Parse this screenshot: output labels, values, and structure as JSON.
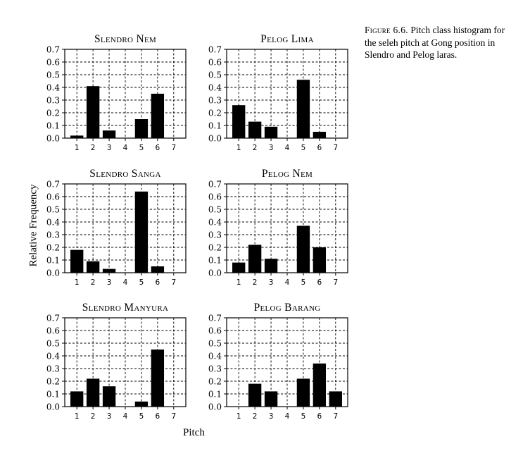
{
  "figure": {
    "caption_lead": "Figure 6.6.",
    "caption_text": "Pitch class histogram for the seleh pitch at Gong position in Slendro and Pelog laras.",
    "ylabel": "Relative Frequency",
    "xlabel": "Pitch"
  },
  "chart_data": [
    {
      "type": "bar",
      "title": "Slendro Nem",
      "categories": [
        "1",
        "2",
        "3",
        "4",
        "5",
        "6",
        "7"
      ],
      "values": [
        0.02,
        0.41,
        0.06,
        0.0,
        0.15,
        0.35,
        0.0
      ],
      "ylim": [
        0,
        0.7
      ],
      "yticks": [
        "0.0",
        "0.1",
        "0.2",
        "0.3",
        "0.4",
        "0.5",
        "0.6",
        "0.7"
      ],
      "grid": true
    },
    {
      "type": "bar",
      "title": "Pelog Lima",
      "categories": [
        "1",
        "2",
        "3",
        "4",
        "5",
        "6",
        "7"
      ],
      "values": [
        0.26,
        0.13,
        0.09,
        0.0,
        0.46,
        0.05,
        0.0
      ],
      "ylim": [
        0,
        0.7
      ],
      "yticks": [
        "0.0",
        "0.1",
        "0.2",
        "0.3",
        "0.4",
        "0.5",
        "0.6",
        "0.7"
      ],
      "grid": true
    },
    {
      "type": "bar",
      "title": "Slendro Sanga",
      "categories": [
        "1",
        "2",
        "3",
        "4",
        "5",
        "6",
        "7"
      ],
      "values": [
        0.18,
        0.09,
        0.03,
        0.0,
        0.64,
        0.05,
        0.0
      ],
      "ylim": [
        0,
        0.7
      ],
      "yticks": [
        "0.0",
        "0.1",
        "0.2",
        "0.3",
        "0.4",
        "0.5",
        "0.6",
        "0.7"
      ],
      "grid": true
    },
    {
      "type": "bar",
      "title": "Pelog Nem",
      "categories": [
        "1",
        "2",
        "3",
        "4",
        "5",
        "6",
        "7"
      ],
      "values": [
        0.08,
        0.22,
        0.11,
        0.0,
        0.37,
        0.2,
        0.0
      ],
      "ylim": [
        0,
        0.7
      ],
      "yticks": [
        "0.0",
        "0.1",
        "0.2",
        "0.3",
        "0.4",
        "0.5",
        "0.6",
        "0.7"
      ],
      "grid": true
    },
    {
      "type": "bar",
      "title": "Slendro Manyura",
      "categories": [
        "1",
        "2",
        "3",
        "4",
        "5",
        "6",
        "7"
      ],
      "values": [
        0.12,
        0.22,
        0.16,
        0.0,
        0.04,
        0.45,
        0.0
      ],
      "ylim": [
        0,
        0.7
      ],
      "yticks": [
        "0.0",
        "0.1",
        "0.2",
        "0.3",
        "0.4",
        "0.5",
        "0.6",
        "0.7"
      ],
      "grid": true
    },
    {
      "type": "bar",
      "title": "Pelog Barang",
      "categories": [
        "1",
        "2",
        "3",
        "4",
        "5",
        "6",
        "7"
      ],
      "values": [
        0.0,
        0.18,
        0.12,
        0.0,
        0.22,
        0.34,
        0.12
      ],
      "ylim": [
        0,
        0.7
      ],
      "yticks": [
        "0.0",
        "0.1",
        "0.2",
        "0.3",
        "0.4",
        "0.5",
        "0.6",
        "0.7"
      ],
      "grid": true
    }
  ]
}
